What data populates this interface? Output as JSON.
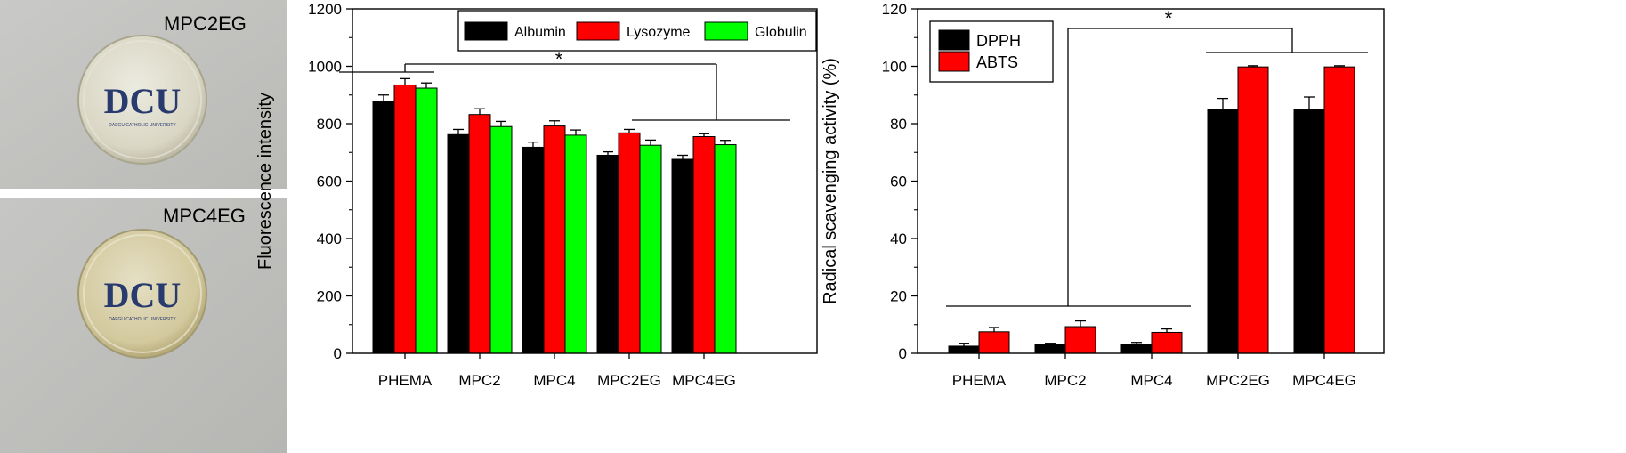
{
  "photos": [
    {
      "label": "MPC2EG",
      "logo_text": "DCU",
      "logo_subtext": "DAEGU CATHOLIC UNIVERSITY"
    },
    {
      "label": "MPC4EG",
      "logo_text": "DCU",
      "logo_subtext": "DAEGU CATHOLIC UNIVERSITY"
    }
  ],
  "chart_data": [
    {
      "type": "bar",
      "ylabel": "Fluorescence intensity",
      "xlabel": "",
      "ylim": [
        0,
        1200
      ],
      "yticks": [
        0,
        200,
        400,
        600,
        800,
        1000,
        1200
      ],
      "categories": [
        "PHEMA",
        "MPC2",
        "MPC4",
        "MPC2EG",
        "MPC4EG"
      ],
      "legend_position": "top-right",
      "series": [
        {
          "name": "Albumin",
          "color": "#000000",
          "values": [
            876,
            762,
            718,
            690,
            676
          ],
          "errors": [
            24,
            18,
            18,
            12,
            14
          ]
        },
        {
          "name": "Lysozyme",
          "color": "#ff0000",
          "values": [
            935,
            832,
            792,
            768,
            755
          ],
          "errors": [
            22,
            20,
            18,
            12,
            10
          ]
        },
        {
          "name": "Globulin",
          "color": "#00ff00",
          "values": [
            924,
            790,
            760,
            725,
            727
          ],
          "errors": [
            18,
            18,
            18,
            18,
            15
          ]
        }
      ],
      "annotations": [
        {
          "text": "*"
        }
      ]
    },
    {
      "type": "bar",
      "ylabel": "Radical scavenging activity (%)",
      "xlabel": "",
      "ylim": [
        0,
        120
      ],
      "yticks": [
        0,
        20,
        40,
        60,
        80,
        100,
        120
      ],
      "categories": [
        "PHEMA",
        "MPC2",
        "MPC4",
        "MPC2EG",
        "MPC4EG"
      ],
      "legend_position": "top-left",
      "series": [
        {
          "name": "DPPH",
          "color": "#000000",
          "values": [
            2.5,
            3.0,
            3.2,
            85.0,
            84.8
          ],
          "errors": [
            1.0,
            0.5,
            0.6,
            3.8,
            4.5
          ]
        },
        {
          "name": "ABTS",
          "color": "#ff0000",
          "values": [
            7.5,
            9.3,
            7.3,
            99.8,
            99.8
          ],
          "errors": [
            1.5,
            2.0,
            1.2,
            0.4,
            0.4
          ]
        }
      ],
      "annotations": [
        {
          "text": "*"
        }
      ]
    }
  ]
}
